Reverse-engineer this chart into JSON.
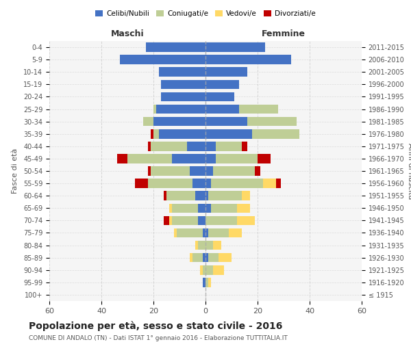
{
  "age_groups": [
    "100+",
    "95-99",
    "90-94",
    "85-89",
    "80-84",
    "75-79",
    "70-74",
    "65-69",
    "60-64",
    "55-59",
    "50-54",
    "45-49",
    "40-44",
    "35-39",
    "30-34",
    "25-29",
    "20-24",
    "15-19",
    "10-14",
    "5-9",
    "0-4"
  ],
  "birth_years": [
    "≤ 1915",
    "1916-1920",
    "1921-1925",
    "1926-1930",
    "1931-1935",
    "1936-1940",
    "1941-1945",
    "1946-1950",
    "1951-1955",
    "1956-1960",
    "1961-1965",
    "1966-1970",
    "1971-1975",
    "1976-1980",
    "1981-1985",
    "1986-1990",
    "1991-1995",
    "1996-2000",
    "2001-2005",
    "2006-2010",
    "2011-2015"
  ],
  "males": {
    "celibi": [
      0,
      1,
      0,
      1,
      0,
      1,
      3,
      3,
      4,
      5,
      6,
      13,
      7,
      18,
      20,
      19,
      17,
      17,
      18,
      33,
      23
    ],
    "coniugati": [
      0,
      0,
      1,
      4,
      3,
      10,
      10,
      10,
      11,
      17,
      15,
      17,
      14,
      2,
      4,
      1,
      0,
      0,
      0,
      0,
      0
    ],
    "vedovi": [
      0,
      0,
      1,
      1,
      1,
      1,
      1,
      1,
      0,
      0,
      0,
      0,
      0,
      0,
      0,
      0,
      0,
      0,
      0,
      0,
      0
    ],
    "divorziati": [
      0,
      0,
      0,
      0,
      0,
      0,
      2,
      0,
      1,
      5,
      1,
      4,
      1,
      1,
      0,
      0,
      0,
      0,
      0,
      0,
      0
    ]
  },
  "females": {
    "nubili": [
      0,
      0,
      0,
      1,
      0,
      1,
      0,
      2,
      1,
      2,
      3,
      4,
      4,
      18,
      16,
      13,
      11,
      13,
      16,
      33,
      23
    ],
    "coniugate": [
      0,
      1,
      3,
      4,
      3,
      8,
      12,
      10,
      13,
      20,
      16,
      16,
      10,
      18,
      19,
      15,
      0,
      0,
      0,
      0,
      0
    ],
    "vedove": [
      0,
      1,
      4,
      5,
      3,
      5,
      7,
      5,
      3,
      5,
      0,
      0,
      0,
      0,
      0,
      0,
      0,
      0,
      0,
      0,
      0
    ],
    "divorziate": [
      0,
      0,
      0,
      0,
      0,
      0,
      0,
      0,
      0,
      2,
      2,
      5,
      2,
      0,
      0,
      0,
      0,
      0,
      0,
      0,
      0
    ]
  },
  "colors": {
    "celibi": "#4472C4",
    "coniugati": "#BFCE96",
    "vedovi": "#FFD966",
    "divorziati": "#C00000"
  },
  "xlim": 60,
  "title": "Popolazione per età, sesso e stato civile - 2016",
  "subtitle": "COMUNE DI ANDALO (TN) - Dati ISTAT 1° gennaio 2016 - Elaborazione TUTTITALIA.IT",
  "ylabel_left": "Fasce di età",
  "ylabel_right": "Anni di nascita",
  "xlabel_left": "Maschi",
  "xlabel_right": "Femmine",
  "legend_labels": [
    "Celibi/Nubili",
    "Coniugati/e",
    "Vedovi/e",
    "Divorziati/e"
  ],
  "bg_color": "#f5f5f5",
  "grid_color": "#cccccc"
}
